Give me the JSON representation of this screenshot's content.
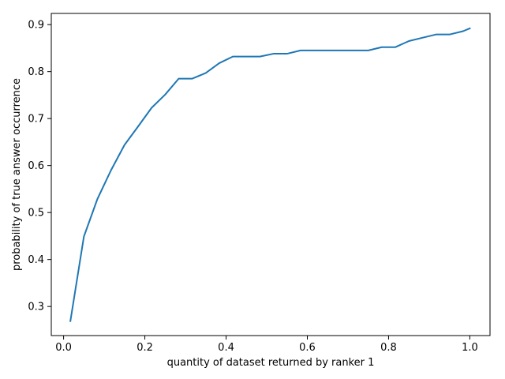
{
  "chart_data": {
    "type": "line",
    "title": "",
    "xlabel": "quantity of dataset returned by ranker 1",
    "ylabel": "probability of true answer occurrence",
    "xlim": [
      -0.0303,
      1.0497
    ],
    "ylim": [
      0.2381,
      0.9238
    ],
    "xticks": [
      0.0,
      0.2,
      0.4,
      0.6,
      0.8,
      1.0
    ],
    "xtick_labels": [
      "0.0",
      "0.2",
      "0.4",
      "0.6",
      "0.8",
      "1.0"
    ],
    "yticks": [
      0.3,
      0.4,
      0.5,
      0.6,
      0.7,
      0.8,
      0.9
    ],
    "ytick_labels": [
      "0.3",
      "0.4",
      "0.5",
      "0.6",
      "0.7",
      "0.8",
      "0.9"
    ],
    "grid": false,
    "legend": "none",
    "series": [
      {
        "color": "#1f77b4",
        "x": [
          0.0167,
          0.05,
          0.0833,
          0.1167,
          0.15,
          0.1833,
          0.2167,
          0.25,
          0.2833,
          0.3167,
          0.35,
          0.3833,
          0.4167,
          0.45,
          0.4833,
          0.5167,
          0.55,
          0.5833,
          0.6167,
          0.65,
          0.6833,
          0.7167,
          0.75,
          0.7833,
          0.8167,
          0.85,
          0.8833,
          0.9167,
          0.95,
          0.9833,
          1.0
        ],
        "y": [
          0.269,
          0.449,
          0.529,
          0.59,
          0.644,
          0.683,
          0.723,
          0.751,
          0.785,
          0.785,
          0.797,
          0.818,
          0.832,
          0.832,
          0.832,
          0.838,
          0.838,
          0.845,
          0.845,
          0.845,
          0.845,
          0.845,
          0.845,
          0.852,
          0.852,
          0.865,
          0.872,
          0.879,
          0.879,
          0.886,
          0.892
        ]
      }
    ]
  }
}
